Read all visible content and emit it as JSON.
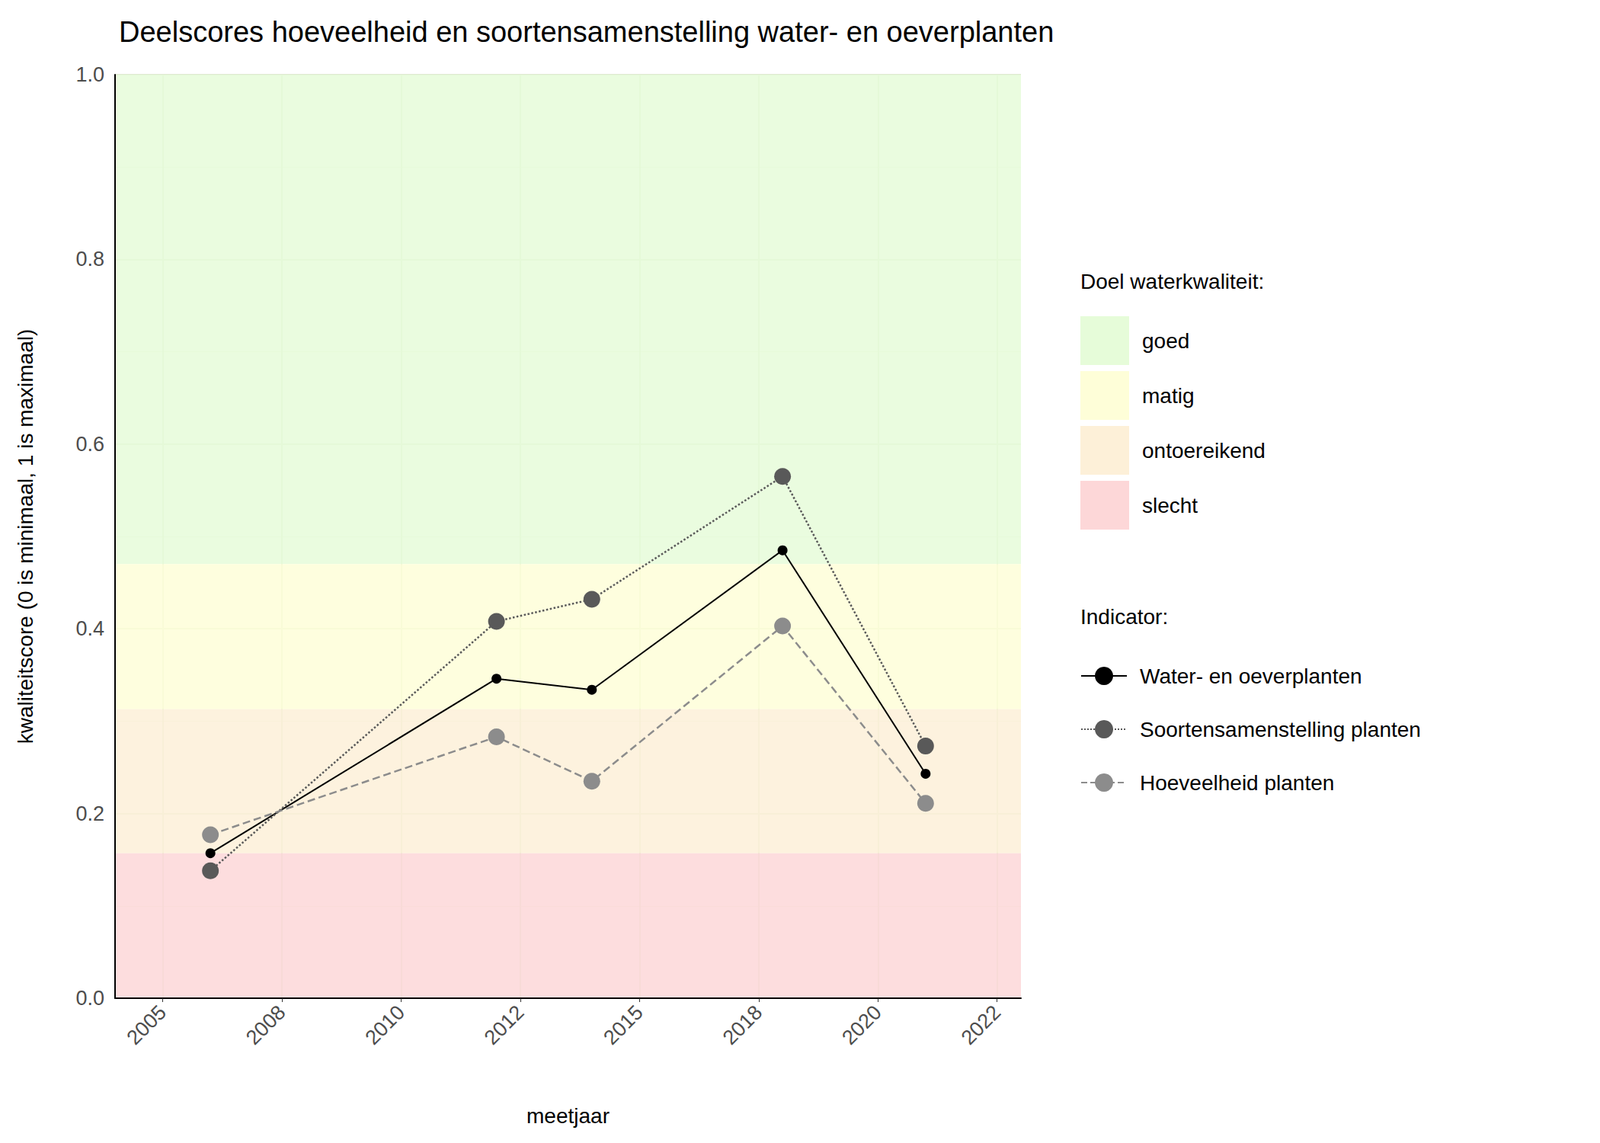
{
  "chart_data": {
    "type": "line",
    "title": "Deelscores hoeveelheid en soortensamenstelling water- en oeverplanten",
    "x_label": "meetjaar",
    "y_label": "kwaliteitscore (0 is minimaal, 1 is maximaal)",
    "xlim": [
      2004,
      2023
    ],
    "xticks": [
      2005,
      {
        "value": 2007.5,
        "label": "2008"
      },
      2010,
      {
        "value": 2012.5,
        "label": "2012"
      },
      2015,
      {
        "value": 2017.5,
        "label": "2018"
      },
      2020,
      {
        "value": 2022.5,
        "label": "2022"
      }
    ],
    "ylim": [
      0,
      1
    ],
    "yticks": [
      {
        "value": 0,
        "label": "0.0"
      },
      0.2,
      0.4,
      0.6,
      0.8,
      {
        "value": 1,
        "label": "1.0"
      }
    ],
    "grid": true,
    "legend": "right",
    "bands_title": "Doel waterkwaliteit:",
    "bands": [
      {
        "name": "goed",
        "from": 0.47,
        "to": 1,
        "color": "#e6fcd9"
      },
      {
        "name": "matig",
        "from": 0.313,
        "to": 0.47,
        "color": "#fefed8"
      },
      {
        "name": "ontoereikend",
        "from": 0.157,
        "to": 0.313,
        "color": "#fdf0d8"
      },
      {
        "name": "slecht",
        "from": 0,
        "to": 0.157,
        "color": "#fdd7d8"
      }
    ],
    "legend_title": "Indicator:",
    "x": [
      2006,
      2012,
      2014,
      2018,
      2021
    ],
    "series": [
      {
        "name": "Water- en oeverplanten",
        "color": "#000000",
        "line_style": "solid",
        "marker": "circle",
        "values": [
          0.157,
          0.346,
          0.334,
          0.485,
          0.243
        ]
      },
      {
        "name": "Soortensamenstelling planten",
        "color": "#595959",
        "line_style": "dotted",
        "marker": "circle",
        "values": [
          0.138,
          0.408,
          0.432,
          0.565,
          0.273
        ]
      },
      {
        "name": "Hoeveelheid planten",
        "color": "#8c8c8c",
        "line_style": "dashed",
        "marker": "circle",
        "values": [
          0.177,
          0.283,
          0.235,
          0.403,
          0.211
        ]
      }
    ]
  }
}
